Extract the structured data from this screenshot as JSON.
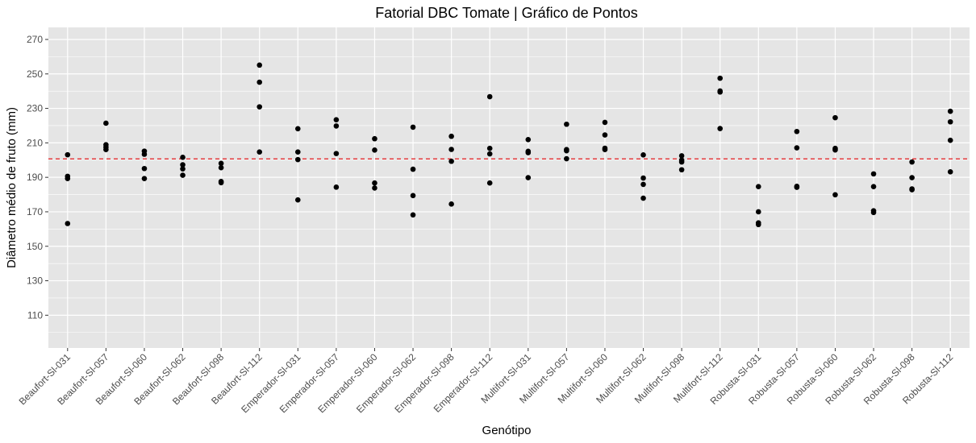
{
  "chart_data": {
    "type": "scatter",
    "title": "Fatorial DBC Tomate | Gráfico de Pontos",
    "xlabel": "Genótipo",
    "ylabel": "Diâmetro médio de fruto (mm)",
    "ylim": [
      91,
      277
    ],
    "yticks": [
      110,
      130,
      150,
      170,
      190,
      210,
      230,
      250,
      270
    ],
    "grid": true,
    "reference_line": {
      "y": 200.7,
      "style": "dashed",
      "color": "#e41a1c"
    },
    "colors": {
      "panel": "#e5e5e5",
      "grid": "#ffffff",
      "point": "#000000",
      "ref_line": "#e41a1c",
      "tick_text": "#4d4d4d"
    },
    "categories": [
      "Beaufort-Sl-031",
      "Beaufort-Sl-057",
      "Beaufort-Sl-060",
      "Beaufort-Sl-062",
      "Beaufort-Sl-098",
      "Beaufort-Sl-112",
      "Emperador-Sl-031",
      "Emperador-Sl-057",
      "Emperador-Sl-060",
      "Emperador-Sl-062",
      "Emperador-Sl-098",
      "Emperador-Sl-112",
      "Multifort-Sl-031",
      "Multifort-Sl-057",
      "Multifort-Sl-060",
      "Multifort-Sl-062",
      "Multifort-Sl-098",
      "Multifort-Sl-112",
      "Robusta-Sl-031",
      "Robusta-Sl-057",
      "Robusta-Sl-060",
      "Robusta-Sl-062",
      "Robusta-Sl-098",
      "Robusta-Sl-112"
    ],
    "values": [
      [
        203.1,
        190.6,
        189.3,
        163.2
      ],
      [
        221.4,
        208.9,
        207.5,
        206.1
      ],
      [
        205.2,
        203.4,
        195.1,
        189.3
      ],
      [
        201.6,
        197.3,
        194.9,
        191.2
      ],
      [
        198.1,
        195.6,
        187.6,
        186.9
      ],
      [
        255.1,
        245.2,
        230.9,
        204.7
      ],
      [
        218.2,
        204.7,
        200.3,
        176.9
      ],
      [
        223.4,
        219.8,
        203.8,
        184.3
      ],
      [
        212.4,
        205.8,
        186.7,
        183.8
      ],
      [
        219.1,
        194.7,
        179.4,
        168.2
      ],
      [
        213.8,
        206.2,
        199.3,
        174.5
      ],
      [
        236.8,
        206.8,
        203.6,
        186.7
      ],
      [
        211.9,
        205.1,
        204.3,
        189.8
      ],
      [
        220.8,
        206.1,
        205.4,
        200.8
      ],
      [
        221.9,
        214.6,
        206.9,
        206.1
      ],
      [
        203.0,
        189.6,
        185.9,
        177.9
      ],
      [
        202.5,
        200.0,
        198.9,
        194.4
      ],
      [
        247.5,
        240.1,
        239.5,
        218.3
      ],
      [
        184.6,
        170.0,
        163.6,
        162.6
      ],
      [
        216.6,
        207.1,
        184.8,
        184.2
      ],
      [
        224.6,
        206.8,
        205.9,
        179.9
      ],
      [
        192.0,
        184.6,
        170.6,
        169.6
      ],
      [
        198.9,
        189.8,
        183.3,
        182.8
      ],
      [
        228.3,
        222.2,
        211.5,
        193.2
      ]
    ]
  }
}
